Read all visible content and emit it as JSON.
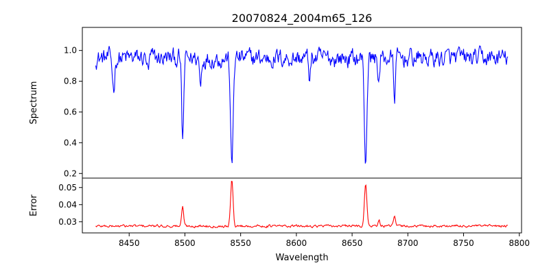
{
  "chart_data": {
    "title": "20070824_2004m65_126",
    "xlabel": "Wavelength",
    "xlim": [
      8408,
      8802
    ],
    "xticks": [
      8450,
      8500,
      8550,
      8600,
      8650,
      8700,
      8750,
      8800
    ],
    "panels": [
      {
        "name": "spectrum",
        "type": "line",
        "ylabel": "Spectrum",
        "ylim": [
          0.17,
          1.15
        ],
        "yticks": [
          0.2,
          0.4,
          0.6,
          0.8,
          1.0
        ],
        "color": "#0000ff",
        "series": [
          {
            "x_start": 8420,
            "x_end": 8790,
            "baseline": 0.95,
            "noise_amplitude": 0.05,
            "absorption_lines": [
              {
                "center": 8436,
                "depth": 0.2,
                "width": 1.0
              },
              {
                "center": 8467,
                "depth": 0.1,
                "width": 0.8
              },
              {
                "center": 8498.0,
                "depth": 0.55,
                "width": 0.9
              },
              {
                "center": 8514,
                "depth": 0.18,
                "width": 0.8
              },
              {
                "center": 8542.1,
                "depth": 0.73,
                "width": 1.1
              },
              {
                "center": 8612,
                "depth": 0.13,
                "width": 0.8
              },
              {
                "center": 8662.1,
                "depth": 0.68,
                "width": 1.1
              },
              {
                "center": 8674,
                "depth": 0.15,
                "width": 0.8
              },
              {
                "center": 8688,
                "depth": 0.25,
                "width": 0.8
              }
            ]
          }
        ]
      },
      {
        "name": "error",
        "type": "line",
        "ylabel": "Error",
        "ylim": [
          0.0235,
          0.0555
        ],
        "yticks": [
          0.03,
          0.04,
          0.05
        ],
        "color": "#ff0000",
        "series": [
          {
            "x_start": 8420,
            "x_end": 8790,
            "baseline": 0.0275,
            "noise_amplitude": 0.0006,
            "emission_lines": [
              {
                "center": 8498.0,
                "height": 0.0112,
                "width": 0.9
              },
              {
                "center": 8542.1,
                "height": 0.0265,
                "width": 1.1
              },
              {
                "center": 8662.1,
                "height": 0.0245,
                "width": 1.1
              },
              {
                "center": 8688,
                "height": 0.006,
                "width": 0.8
              },
              {
                "center": 8674,
                "height": 0.004,
                "width": 0.8
              }
            ]
          }
        ]
      }
    ]
  }
}
